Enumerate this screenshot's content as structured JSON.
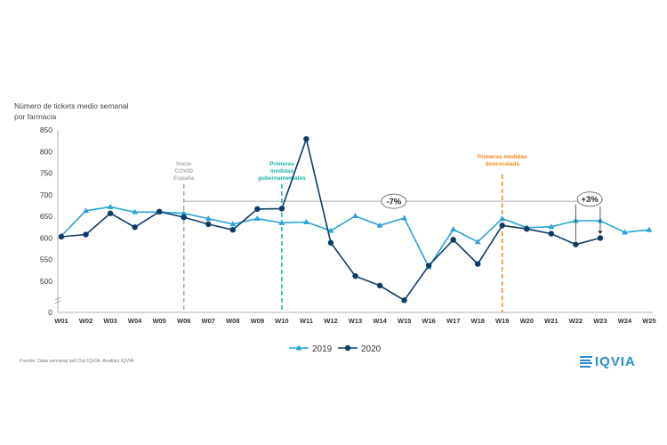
{
  "chart_data": {
    "type": "line",
    "ylabel": "Número de tickets medio semanal por farmacia",
    "ylim": [
      0,
      850
    ],
    "y_ticks": [
      "850",
      "800",
      "750",
      "700",
      "650",
      "600",
      "550",
      "500",
      "0"
    ],
    "categories": [
      "W01",
      "W02",
      "W03",
      "W04",
      "W05",
      "W06",
      "W07",
      "W08",
      "W09",
      "W10",
      "W11",
      "W12",
      "W13",
      "W14",
      "W15",
      "W16",
      "W17",
      "W18",
      "W19",
      "W20",
      "W21",
      "W22",
      "W23",
      "W24",
      "W25"
    ],
    "series": [
      {
        "name": "2019",
        "color": "#29a3d6",
        "values": [
          605,
          663,
          672,
          660,
          660,
          657,
          645,
          632,
          645,
          635,
          637,
          617,
          651,
          629,
          646,
          533,
          620,
          591,
          645,
          624,
          626,
          640,
          640,
          613,
          619
        ]
      },
      {
        "name": "2020",
        "color": "#0d3b66",
        "values": [
          603,
          608,
          657,
          625,
          661,
          648,
          632,
          619,
          667,
          668,
          829,
          589,
          512,
          489,
          456,
          536,
          596,
          540,
          629,
          621,
          610,
          585,
          600,
          null,
          null
        ]
      }
    ],
    "annotations": {
      "event1": {
        "lines": [
          "Inicio",
          "COVID",
          "España"
        ],
        "week": "W06",
        "color": "#aaaaaa"
      },
      "event2": {
        "lines": [
          "Primeras",
          "medidas",
          "gubernamentales"
        ],
        "week": "W10",
        "color": "#1bb5a8"
      },
      "event3": {
        "lines": [
          "Primeras medidas",
          "desescalada"
        ],
        "week": "W19",
        "color": "#f08a24"
      },
      "change1": "-7%",
      "change2": "+3%"
    },
    "legend": {
      "position": "bottom",
      "label_2019": "2019",
      "label_2020": "2020"
    }
  },
  "footer": {
    "source": "Fuente: Data semanal sell Out IQVIA. Análisis IQVIA",
    "logo": "IQVIA"
  }
}
